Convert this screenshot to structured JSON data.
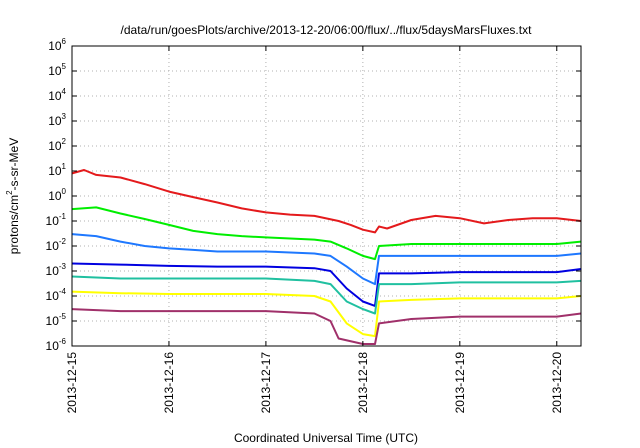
{
  "chart_data": {
    "type": "line",
    "title": "/data/run/goesPlots/archive/2013-12-20/06:00/flux/../flux/5daysMarsFluxes.txt",
    "xlabel": "Coordinated Universal Time (UTC)",
    "ylabel": {
      "base": "protons/cm",
      "sup": "2",
      "rest": "-s-sr-MeV"
    },
    "yscale": "log",
    "ylim": [
      1e-06,
      1000000
    ],
    "xlim": [
      "2013-12-15T00:00",
      "2013-12-20T06:00"
    ],
    "grid": true,
    "x_ticks": [
      "2013-12-15",
      "2013-12-16",
      "2013-12-17",
      "2013-12-18",
      "2013-12-19",
      "2013-12-20"
    ],
    "y_ticks": [
      {
        "base": "10",
        "exp": "-6"
      },
      {
        "base": "10",
        "exp": "-5"
      },
      {
        "base": "10",
        "exp": "-4"
      },
      {
        "base": "10",
        "exp": "-3"
      },
      {
        "base": "10",
        "exp": "-2"
      },
      {
        "base": "10",
        "exp": "-1"
      },
      {
        "base": "10",
        "exp": "0"
      },
      {
        "base": "10",
        "exp": "1"
      },
      {
        "base": "10",
        "exp": "2"
      },
      {
        "base": "10",
        "exp": "3"
      },
      {
        "base": "10",
        "exp": "4"
      },
      {
        "base": "10",
        "exp": "5"
      },
      {
        "base": "10",
        "exp": "6"
      }
    ],
    "series": [
      {
        "color": "#e41a1c",
        "points": [
          [
            "2013-12-15T00:00",
            8
          ],
          [
            "2013-12-15T03:00",
            11
          ],
          [
            "2013-12-15T06:00",
            7
          ],
          [
            "2013-12-15T12:00",
            5.5
          ],
          [
            "2013-12-15T18:00",
            3
          ],
          [
            "2013-12-16T00:00",
            1.5
          ],
          [
            "2013-12-16T06:00",
            0.9
          ],
          [
            "2013-12-16T12:00",
            0.55
          ],
          [
            "2013-12-16T18:00",
            0.32
          ],
          [
            "2013-12-17T00:00",
            0.22
          ],
          [
            "2013-12-17T06:00",
            0.18
          ],
          [
            "2013-12-17T12:00",
            0.16
          ],
          [
            "2013-12-17T18:00",
            0.1
          ],
          [
            "2013-12-17T21:00",
            0.07
          ],
          [
            "2013-12-18T00:00",
            0.045
          ],
          [
            "2013-12-18T03:00",
            0.035
          ],
          [
            "2013-12-18T04:00",
            0.06
          ],
          [
            "2013-12-18T06:00",
            0.05
          ],
          [
            "2013-12-18T12:00",
            0.11
          ],
          [
            "2013-12-18T18:00",
            0.16
          ],
          [
            "2013-12-19T00:00",
            0.13
          ],
          [
            "2013-12-19T06:00",
            0.08
          ],
          [
            "2013-12-19T12:00",
            0.11
          ],
          [
            "2013-12-19T18:00",
            0.13
          ],
          [
            "2013-12-20T00:00",
            0.13
          ],
          [
            "2013-12-20T06:00",
            0.1
          ]
        ]
      },
      {
        "color": "#00ee00",
        "points": [
          [
            "2013-12-15T00:00",
            0.3
          ],
          [
            "2013-12-15T06:00",
            0.35
          ],
          [
            "2013-12-15T12:00",
            0.2
          ],
          [
            "2013-12-15T18:00",
            0.12
          ],
          [
            "2013-12-16T00:00",
            0.07
          ],
          [
            "2013-12-16T06:00",
            0.04
          ],
          [
            "2013-12-16T12:00",
            0.03
          ],
          [
            "2013-12-16T18:00",
            0.025
          ],
          [
            "2013-12-17T00:00",
            0.022
          ],
          [
            "2013-12-17T06:00",
            0.02
          ],
          [
            "2013-12-17T12:00",
            0.018
          ],
          [
            "2013-12-17T16:00",
            0.015
          ],
          [
            "2013-12-17T20:00",
            0.008
          ],
          [
            "2013-12-18T00:00",
            0.004
          ],
          [
            "2013-12-18T03:00",
            0.003
          ],
          [
            "2013-12-18T04:00",
            0.01
          ],
          [
            "2013-12-18T12:00",
            0.012
          ],
          [
            "2013-12-19T00:00",
            0.012
          ],
          [
            "2013-12-19T12:00",
            0.012
          ],
          [
            "2013-12-20T00:00",
            0.012
          ],
          [
            "2013-12-20T06:00",
            0.015
          ]
        ]
      },
      {
        "color": "#1e78ff",
        "points": [
          [
            "2013-12-15T00:00",
            0.03
          ],
          [
            "2013-12-15T06:00",
            0.025
          ],
          [
            "2013-12-15T12:00",
            0.015
          ],
          [
            "2013-12-15T18:00",
            0.01
          ],
          [
            "2013-12-16T00:00",
            0.008
          ],
          [
            "2013-12-16T06:00",
            0.007
          ],
          [
            "2013-12-16T12:00",
            0.006
          ],
          [
            "2013-12-17T00:00",
            0.006
          ],
          [
            "2013-12-17T12:00",
            0.005
          ],
          [
            "2013-12-17T16:00",
            0.004
          ],
          [
            "2013-12-17T20:00",
            0.0015
          ],
          [
            "2013-12-18T00:00",
            0.0005
          ],
          [
            "2013-12-18T03:00",
            0.0003
          ],
          [
            "2013-12-18T04:00",
            0.004
          ],
          [
            "2013-12-18T12:00",
            0.004
          ],
          [
            "2013-12-19T00:00",
            0.004
          ],
          [
            "2013-12-19T12:00",
            0.004
          ],
          [
            "2013-12-20T00:00",
            0.004
          ],
          [
            "2013-12-20T06:00",
            0.005
          ]
        ]
      },
      {
        "color": "#0000e0",
        "points": [
          [
            "2013-12-15T00:00",
            0.002
          ],
          [
            "2013-12-15T12:00",
            0.0018
          ],
          [
            "2013-12-16T00:00",
            0.0016
          ],
          [
            "2013-12-16T12:00",
            0.0015
          ],
          [
            "2013-12-17T00:00",
            0.0015
          ],
          [
            "2013-12-17T12:00",
            0.0013
          ],
          [
            "2013-12-17T16:00",
            0.001
          ],
          [
            "2013-12-17T20:00",
            0.0002
          ],
          [
            "2013-12-18T00:00",
            6e-05
          ],
          [
            "2013-12-18T03:00",
            4e-05
          ],
          [
            "2013-12-18T04:00",
            0.0008
          ],
          [
            "2013-12-18T12:00",
            0.0008
          ],
          [
            "2013-12-19T00:00",
            0.0009
          ],
          [
            "2013-12-19T12:00",
            0.0009
          ],
          [
            "2013-12-20T00:00",
            0.0009
          ],
          [
            "2013-12-20T06:00",
            0.0012
          ]
        ]
      },
      {
        "color": "#20c0a0",
        "points": [
          [
            "2013-12-15T00:00",
            0.0006
          ],
          [
            "2013-12-15T12:00",
            0.0005
          ],
          [
            "2013-12-16T00:00",
            0.0005
          ],
          [
            "2013-12-16T12:00",
            0.0005
          ],
          [
            "2013-12-17T00:00",
            0.0005
          ],
          [
            "2013-12-17T12:00",
            0.0004
          ],
          [
            "2013-12-17T16:00",
            0.0003
          ],
          [
            "2013-12-17T20:00",
            6e-05
          ],
          [
            "2013-12-18T00:00",
            3e-05
          ],
          [
            "2013-12-18T03:00",
            2e-05
          ],
          [
            "2013-12-18T04:00",
            0.0003
          ],
          [
            "2013-12-18T12:00",
            0.0003
          ],
          [
            "2013-12-19T00:00",
            0.00035
          ],
          [
            "2013-12-19T12:00",
            0.00035
          ],
          [
            "2013-12-20T00:00",
            0.00035
          ],
          [
            "2013-12-20T06:00",
            0.0004
          ]
        ]
      },
      {
        "color": "#ffff00",
        "points": [
          [
            "2013-12-15T00:00",
            0.00015
          ],
          [
            "2013-12-15T12:00",
            0.00013
          ],
          [
            "2013-12-16T00:00",
            0.00012
          ],
          [
            "2013-12-16T12:00",
            0.00012
          ],
          [
            "2013-12-17T00:00",
            0.00012
          ],
          [
            "2013-12-17T12:00",
            0.0001
          ],
          [
            "2013-12-17T16:00",
            6e-05
          ],
          [
            "2013-12-17T20:00",
            8e-06
          ],
          [
            "2013-12-18T00:00",
            3e-06
          ],
          [
            "2013-12-18T03:00",
            2.5e-06
          ],
          [
            "2013-12-18T04:00",
            6e-05
          ],
          [
            "2013-12-18T12:00",
            7e-05
          ],
          [
            "2013-12-19T00:00",
            8e-05
          ],
          [
            "2013-12-19T12:00",
            8e-05
          ],
          [
            "2013-12-20T00:00",
            8e-05
          ],
          [
            "2013-12-20T06:00",
            0.0001
          ]
        ]
      },
      {
        "color": "#a0306a",
        "points": [
          [
            "2013-12-15T00:00",
            3e-05
          ],
          [
            "2013-12-15T12:00",
            2.5e-05
          ],
          [
            "2013-12-16T00:00",
            2.5e-05
          ],
          [
            "2013-12-16T12:00",
            2.5e-05
          ],
          [
            "2013-12-17T00:00",
            2.5e-05
          ],
          [
            "2013-12-17T12:00",
            2e-05
          ],
          [
            "2013-12-17T16:00",
            1e-05
          ],
          [
            "2013-12-17T18:00",
            2e-06
          ],
          [
            "2013-12-18T00:00",
            1.2e-06
          ],
          [
            "2013-12-18T03:00",
            1.2e-06
          ],
          [
            "2013-12-18T04:00",
            8e-06
          ],
          [
            "2013-12-18T12:00",
            1.2e-05
          ],
          [
            "2013-12-19T00:00",
            1.5e-05
          ],
          [
            "2013-12-19T12:00",
            1.5e-05
          ],
          [
            "2013-12-20T00:00",
            1.5e-05
          ],
          [
            "2013-12-20T06:00",
            2e-05
          ]
        ]
      }
    ]
  }
}
